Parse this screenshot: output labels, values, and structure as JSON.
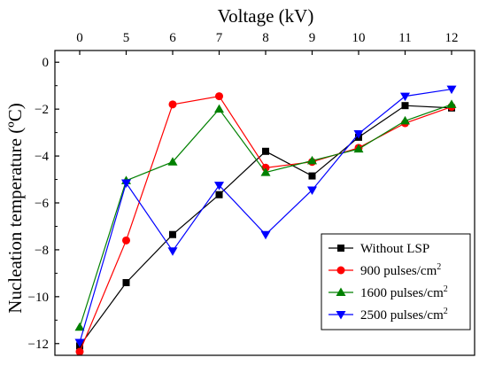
{
  "chart_data": {
    "type": "line",
    "xlabel": "Voltage (kV)",
    "ylabel": "Nucleation temperature (ºC)",
    "x_axis_position": "top",
    "x": [
      "0",
      "5",
      "6",
      "7",
      "8",
      "9",
      "10",
      "11",
      "12"
    ],
    "ylim": [
      -12.5,
      0.5
    ],
    "yticks": [
      "-12",
      "-10",
      "-8",
      "-6",
      "-4",
      "-2",
      "0"
    ],
    "legend_position": "bottom-right",
    "series": [
      {
        "name": "Without LSP",
        "unit_sup": "",
        "color": "#000000",
        "marker": "square",
        "values": [
          -12.1,
          -9.4,
          -7.35,
          -5.65,
          -3.8,
          -4.85,
          -3.2,
          -1.85,
          -1.95
        ]
      },
      {
        "name": "900   pulses/cm",
        "unit_sup": "2",
        "color": "#ff0000",
        "marker": "circle",
        "values": [
          -12.35,
          -7.6,
          -1.8,
          -1.45,
          -4.5,
          -4.25,
          -3.65,
          -2.6,
          -1.9
        ]
      },
      {
        "name": "1600 pulses/cm",
        "unit_sup": "2",
        "color": "#008000",
        "marker": "triangle-up",
        "values": [
          -11.3,
          -5.05,
          -4.25,
          -2.0,
          -4.7,
          -4.2,
          -3.7,
          -2.5,
          -1.8
        ]
      },
      {
        "name": "2500 pulses/cm",
        "unit_sup": "2",
        "color": "#0000ff",
        "marker": "triangle-down",
        "values": [
          -11.95,
          -5.15,
          -8.05,
          -5.25,
          -7.35,
          -5.45,
          -3.05,
          -1.45,
          -1.15
        ]
      }
    ]
  }
}
